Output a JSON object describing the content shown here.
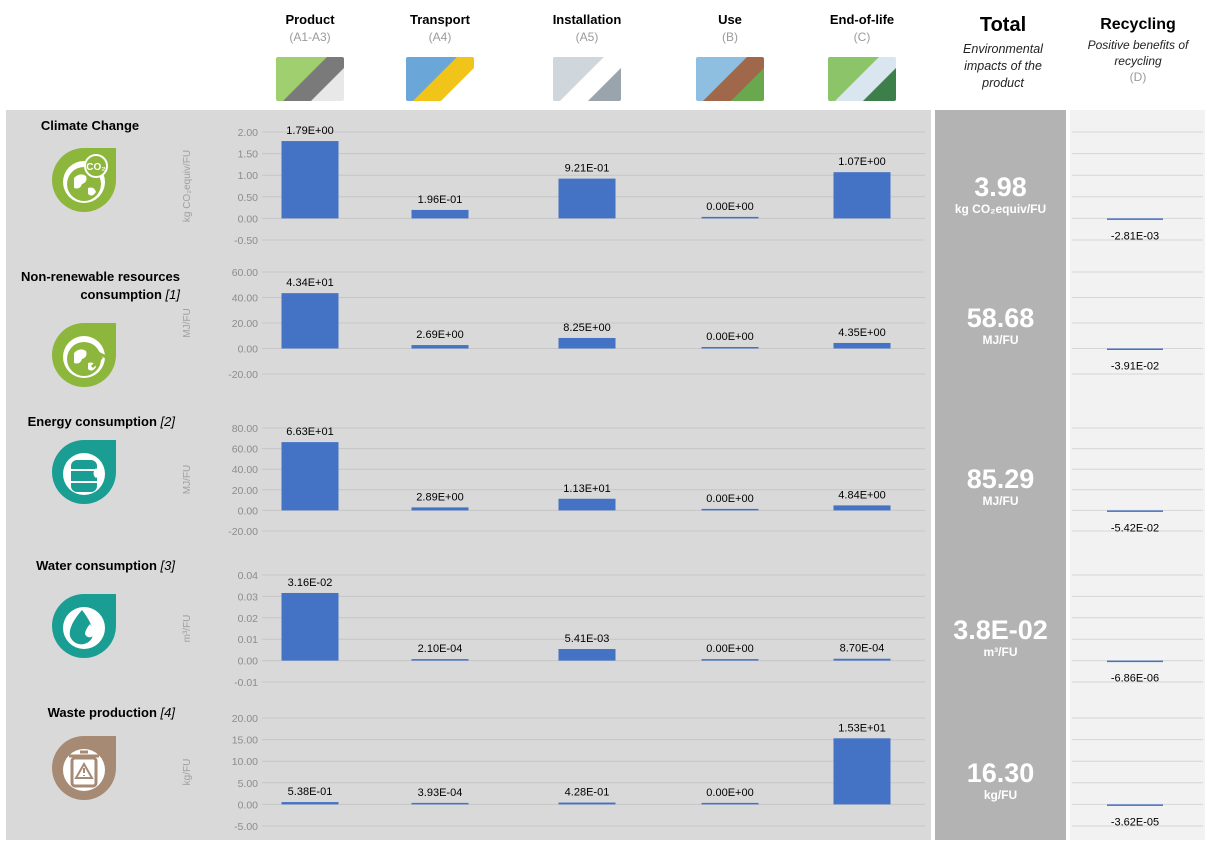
{
  "stages": [
    {
      "name": "Product",
      "code": "(A1-A3)"
    },
    {
      "name": "Transport",
      "code": "(A4)"
    },
    {
      "name": "Installation",
      "code": "(A5)"
    },
    {
      "name": "Use",
      "code": "(B)"
    },
    {
      "name": "End-of-life",
      "code": "(C)"
    }
  ],
  "total_header": {
    "title": "Total",
    "subtitle": "Environmental impacts of the product"
  },
  "recycling_header": {
    "title": "Recycling",
    "subtitle": "Positive benefits of recycling",
    "code": "(D)"
  },
  "colors": {
    "bar": "#4472c4",
    "main_panel": "#d9d9d9",
    "total_panel": "#b3b3b3",
    "recycling_panel": "#f2f2f2",
    "icon_green": "#8db63c",
    "icon_teal": "#1a9e94",
    "icon_brown": "#a68a73"
  },
  "chart_data": [
    {
      "type": "bar",
      "title": "Climate Change",
      "title_ref": "",
      "icon": "co2-earth-icon",
      "ylabel": "kg CO₂equiv/FU",
      "categories": [
        "Product",
        "Transport",
        "Installation",
        "Use",
        "End-of-life"
      ],
      "values": [
        1.79,
        0.196,
        0.921,
        0.0,
        1.07
      ],
      "labels": [
        "1.79E+00",
        "1.96E-01",
        "9.21E-01",
        "0.00E+00",
        "1.07E+00"
      ],
      "yticks": [
        "2.00",
        "1.50",
        "1.00",
        "0.50",
        "0.00",
        "-0.50"
      ],
      "ylim": [
        -0.5,
        2.0
      ],
      "total": "3.98",
      "total_unit": "kg CO₂equiv/FU",
      "recycling_value": -0.00281,
      "recycling_label": "-2.81E-03"
    },
    {
      "type": "bar",
      "title": "Non-renewable resources consumption",
      "title_ref": "[1]",
      "icon": "earth-mining-icon",
      "ylabel": "MJ/FU",
      "categories": [
        "Product",
        "Transport",
        "Installation",
        "Use",
        "End-of-life"
      ],
      "values": [
        43.4,
        2.69,
        8.25,
        0.0,
        4.35
      ],
      "labels": [
        "4.34E+01",
        "2.69E+00",
        "8.25E+00",
        "0.00E+00",
        "4.35E+00"
      ],
      "yticks": [
        "60.00",
        "40.00",
        "20.00",
        "0.00",
        "-20.00"
      ],
      "ylim": [
        -20,
        60
      ],
      "total": "58.68",
      "total_unit": "MJ/FU",
      "recycling_value": -0.0391,
      "recycling_label": "-3.91E-02"
    },
    {
      "type": "bar",
      "title": "Energy consumption",
      "title_ref": "[2]",
      "icon": "oil-barrel-icon",
      "ylabel": "MJ/FU",
      "categories": [
        "Product",
        "Transport",
        "Installation",
        "Use",
        "End-of-life"
      ],
      "values": [
        66.3,
        2.89,
        11.3,
        0.0,
        4.84
      ],
      "labels": [
        "6.63E+01",
        "2.89E+00",
        "1.13E+01",
        "0.00E+00",
        "4.84E+00"
      ],
      "yticks": [
        "80.00",
        "60.00",
        "40.00",
        "20.00",
        "0.00",
        "-20.00"
      ],
      "ylim": [
        -20,
        80
      ],
      "total": "85.29",
      "total_unit": "MJ/FU",
      "recycling_value": -0.0542,
      "recycling_label": "-5.42E-02"
    },
    {
      "type": "bar",
      "title": "Water consumption",
      "title_ref": "[3]",
      "icon": "water-drops-icon",
      "ylabel": "m³/FU",
      "categories": [
        "Product",
        "Transport",
        "Installation",
        "Use",
        "End-of-life"
      ],
      "values": [
        0.0316,
        0.00021,
        0.00541,
        0.0,
        0.00087
      ],
      "labels": [
        "3.16E-02",
        "2.10E-04",
        "5.41E-03",
        "0.00E+00",
        "8.70E-04"
      ],
      "yticks": [
        "0.04",
        "0.03",
        "0.02",
        "0.01",
        "0.00",
        "-0.01"
      ],
      "ylim": [
        -0.01,
        0.04
      ],
      "total": "3.8E-02",
      "total_unit": "m³/FU",
      "recycling_value": -6.86e-06,
      "recycling_label": "-6.86E-06"
    },
    {
      "type": "bar",
      "title": "Waste production",
      "title_ref": "[4]",
      "icon": "trash-warning-icon",
      "ylabel": "kg/FU",
      "categories": [
        "Product",
        "Transport",
        "Installation",
        "Use",
        "End-of-life"
      ],
      "values": [
        0.538,
        0.000393,
        0.428,
        0.0,
        15.3
      ],
      "labels": [
        "5.38E-01",
        "3.93E-04",
        "4.28E-01",
        "0.00E+00",
        "1.53E+01"
      ],
      "yticks": [
        "20.00",
        "15.00",
        "10.00",
        "5.00",
        "0.00",
        "-5.00"
      ],
      "ylim": [
        -5,
        20
      ],
      "total": "16.30",
      "total_unit": "kg/FU",
      "recycling_value": -3.62e-05,
      "recycling_label": "-3.62E-05"
    }
  ]
}
